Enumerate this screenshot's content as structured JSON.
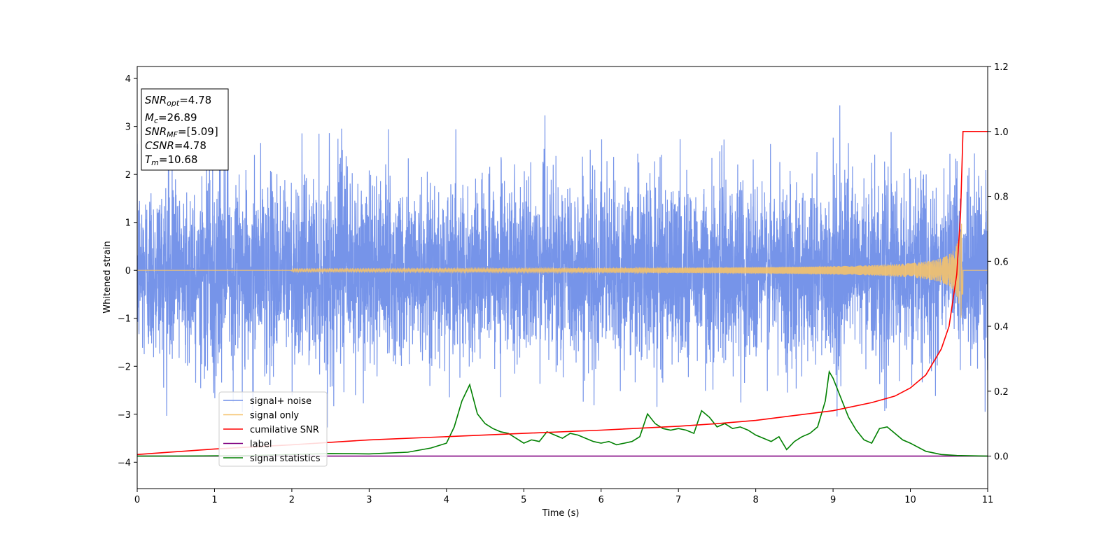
{
  "chart_data": {
    "type": "line",
    "xlabel": "Time (s)",
    "ylabel": "Whitened strain",
    "xlim": [
      0,
      11
    ],
    "ylim_left": [
      -4.55,
      4.25
    ],
    "ylim_right": [
      -0.1,
      1.2
    ],
    "x_ticks": [
      0,
      1,
      2,
      3,
      4,
      5,
      6,
      7,
      8,
      9,
      10,
      11
    ],
    "y_left_ticks": [
      4,
      3,
      2,
      1,
      0,
      -1,
      -2,
      -3,
      -4
    ],
    "y_left_tick_labels": [
      "4",
      "3",
      "2",
      "1",
      "0",
      "−1",
      "−2",
      "−3",
      "−4"
    ],
    "y_right_ticks": [
      1.2,
      1.0,
      0.8,
      0.6,
      0.4,
      0.2,
      0.0
    ],
    "y_right_tick_labels": [
      "1.2",
      "1.0",
      "0.8",
      "0.6",
      "0.4",
      "0.2",
      "0.0"
    ],
    "legend_position": "lower-left",
    "series": [
      {
        "name": "signal+ noise",
        "axis": "left",
        "color": "#6f8ee8",
        "description": "whitened noise plus signal, approx. zero mean, amplitude mostly within ±2.5, peaks near ±3.4",
        "noise_range": [
          -3.3,
          3.45
        ]
      },
      {
        "name": "signal only",
        "axis": "left",
        "color": "#f5c26b",
        "description": "chirp near zero growing to amplitude ~1 at merger time 10.68 s, then flat 0",
        "merger_time": 10.68,
        "peak_amplitude": 1.0
      },
      {
        "name": "cumilative SNR",
        "axis": "right",
        "color": "#ff0000",
        "x": [
          0,
          1,
          2,
          3,
          4,
          5,
          6,
          7,
          7.5,
          8,
          8.5,
          9,
          9.5,
          9.8,
          10,
          10.2,
          10.4,
          10.5,
          10.6,
          10.65,
          10.68,
          11
        ],
        "y": [
          0.005,
          0.022,
          0.035,
          0.05,
          0.06,
          0.07,
          0.08,
          0.092,
          0.1,
          0.11,
          0.125,
          0.14,
          0.165,
          0.185,
          0.21,
          0.25,
          0.33,
          0.4,
          0.56,
          0.75,
          1.0,
          1.0
        ]
      },
      {
        "name": "label",
        "axis": "right",
        "color": "#800080",
        "x": [
          0,
          11
        ],
        "y": [
          0,
          0
        ]
      },
      {
        "name": "signal statistics",
        "axis": "right",
        "color": "#008000",
        "x": [
          0,
          0.5,
          1,
          1.5,
          2,
          2.5,
          3,
          3.5,
          3.8,
          4.0,
          4.1,
          4.2,
          4.3,
          4.4,
          4.5,
          4.6,
          4.7,
          4.8,
          4.9,
          5.0,
          5.1,
          5.2,
          5.3,
          5.4,
          5.5,
          5.6,
          5.7,
          5.8,
          5.9,
          6.0,
          6.1,
          6.2,
          6.3,
          6.4,
          6.5,
          6.6,
          6.7,
          6.8,
          6.9,
          7.0,
          7.1,
          7.2,
          7.3,
          7.4,
          7.5,
          7.6,
          7.7,
          7.8,
          7.9,
          8.0,
          8.1,
          8.2,
          8.3,
          8.4,
          8.5,
          8.6,
          8.7,
          8.8,
          8.9,
          8.95,
          9.0,
          9.1,
          9.2,
          9.3,
          9.4,
          9.5,
          9.6,
          9.7,
          9.8,
          9.9,
          10.0,
          10.2,
          10.4,
          10.6,
          11
        ],
        "y": [
          0.0,
          0.0,
          0.001,
          0.002,
          0.005,
          0.008,
          0.007,
          0.012,
          0.025,
          0.04,
          0.09,
          0.17,
          0.22,
          0.13,
          0.1,
          0.085,
          0.075,
          0.07,
          0.055,
          0.04,
          0.05,
          0.045,
          0.075,
          0.065,
          0.055,
          0.07,
          0.065,
          0.055,
          0.045,
          0.04,
          0.045,
          0.035,
          0.04,
          0.045,
          0.06,
          0.13,
          0.1,
          0.085,
          0.08,
          0.085,
          0.08,
          0.07,
          0.14,
          0.12,
          0.09,
          0.1,
          0.085,
          0.09,
          0.08,
          0.065,
          0.055,
          0.045,
          0.06,
          0.02,
          0.045,
          0.06,
          0.07,
          0.09,
          0.17,
          0.26,
          0.24,
          0.18,
          0.12,
          0.08,
          0.05,
          0.04,
          0.085,
          0.09,
          0.07,
          0.05,
          0.04,
          0.015,
          0.005,
          0.002,
          0.0
        ]
      }
    ],
    "annotation": {
      "lines": [
        {
          "base": "SNR",
          "sub": "opt",
          "value": "=4.78"
        },
        {
          "base": "M",
          "sub": "c",
          "value": "=26.89"
        },
        {
          "base": "SNR",
          "sub": "MF",
          "value": "=[5.09]"
        },
        {
          "base": "CSNR",
          "sub": "",
          "value": "=4.78"
        },
        {
          "base": "T",
          "sub": "m",
          "value": "=10.68"
        }
      ]
    }
  }
}
